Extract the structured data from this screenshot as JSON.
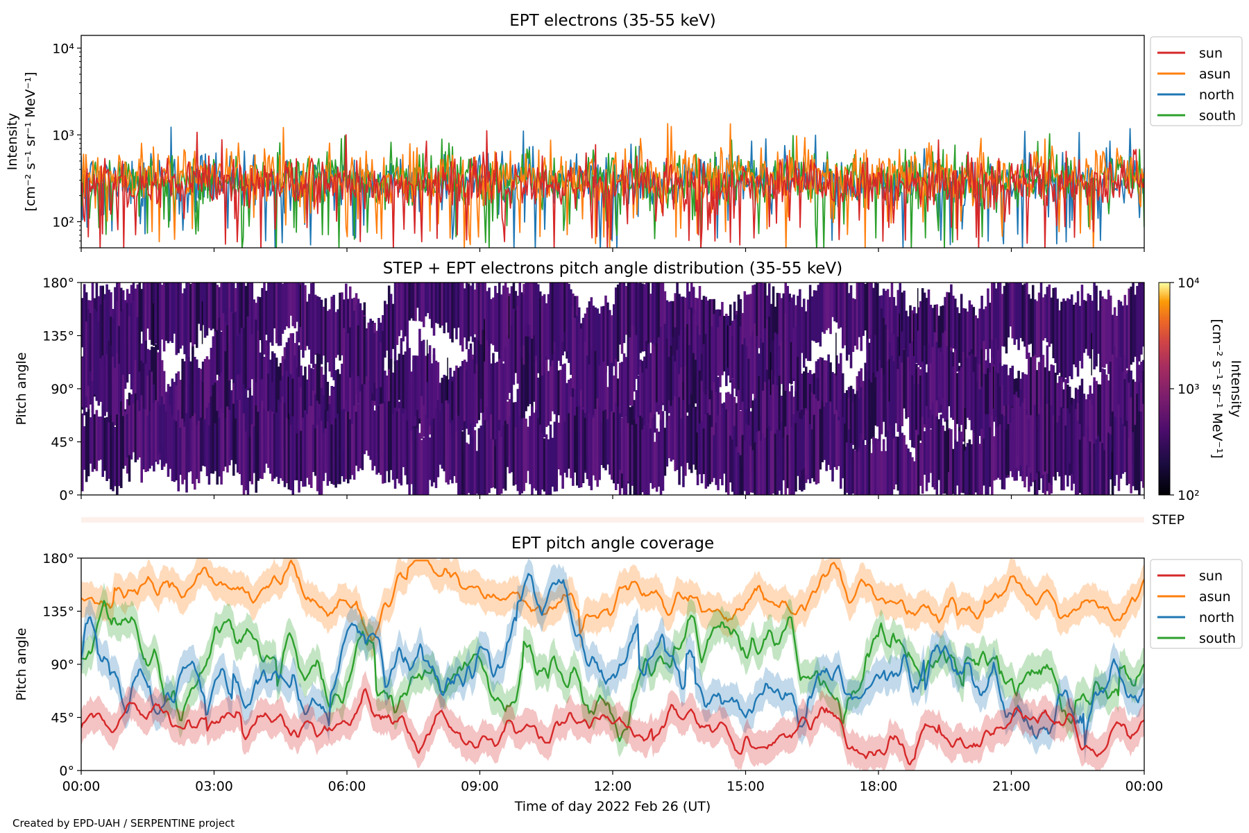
{
  "footer": {
    "credit": "Created by EPD-UAH / SERPENTINE project"
  },
  "colors": {
    "sun": "#d62728",
    "asun": "#ff7f0e",
    "north": "#1f77b4",
    "south": "#2ca02c",
    "step_bar": "#fdf0eb"
  },
  "chart_data": [
    {
      "id": "intensity",
      "type": "line",
      "title": "EPT electrons (35-55 keV)",
      "ylabel": "Intensity",
      "ylabel_unit": "[cm⁻² s⁻¹ sr⁻¹ MeV⁻¹]",
      "yscale": "log",
      "ylim": [
        50,
        14000
      ],
      "yticks": [
        {
          "value": 100,
          "label": "10²"
        },
        {
          "value": 1000,
          "label": "10³"
        },
        {
          "value": 10000,
          "label": "10⁴"
        }
      ],
      "x_range": [
        "00:00",
        "24:00"
      ],
      "legend_position": "outside right, top",
      "series": [
        {
          "name": "sun",
          "color": "#d62728",
          "typical_range": [
            60,
            700
          ],
          "median": 280
        },
        {
          "name": "asun",
          "color": "#ff7f0e",
          "typical_range": [
            60,
            800
          ],
          "median": 330
        },
        {
          "name": "north",
          "color": "#1f77b4",
          "typical_range": [
            55,
            950
          ],
          "median": 300
        },
        {
          "name": "south",
          "color": "#2ca02c",
          "typical_range": [
            55,
            900
          ],
          "median": 300
        }
      ]
    },
    {
      "id": "pad",
      "type": "heatmap",
      "title": "STEP + EPT electrons pitch angle distribution (35-55 keV)",
      "ylabel": "Pitch angle",
      "ylim": [
        0,
        180
      ],
      "yticks": [
        "0°",
        "45°",
        "90°",
        "135°",
        "180°"
      ],
      "colorbar": {
        "label": "Intensity",
        "unit": "[cm⁻² s⁻¹ sr⁻¹ MeV⁻¹]",
        "scale": "log",
        "range": [
          100,
          10000
        ],
        "ticks": [
          "10²",
          "10³",
          "10⁴"
        ],
        "colormap": "inferno"
      },
      "dominant_value": 300
    },
    {
      "id": "step",
      "type": "bar",
      "label": "STEP",
      "color": "#fdf0eb"
    },
    {
      "id": "coverage",
      "type": "line",
      "title": "EPT pitch angle coverage",
      "ylabel": "Pitch angle",
      "xlabel": "Time of day 2022 Feb 26 (UT)",
      "ylim": [
        0,
        180
      ],
      "yticks": [
        "0°",
        "45°",
        "90°",
        "135°",
        "180°"
      ],
      "xticks": [
        "00:00",
        "03:00",
        "06:00",
        "09:00",
        "12:00",
        "15:00",
        "18:00",
        "21:00",
        "00:00"
      ],
      "legend_position": "outside right, top",
      "series": [
        {
          "name": "sun",
          "color": "#d62728",
          "mean_deg": 35,
          "spread_deg": 15
        },
        {
          "name": "asun",
          "color": "#ff7f0e",
          "mean_deg": 150,
          "spread_deg": 15
        },
        {
          "name": "north",
          "color": "#1f77b4",
          "mean_deg": 90,
          "spread_deg": 25
        },
        {
          "name": "south",
          "color": "#2ca02c",
          "mean_deg": 95,
          "spread_deg": 25
        }
      ]
    }
  ]
}
